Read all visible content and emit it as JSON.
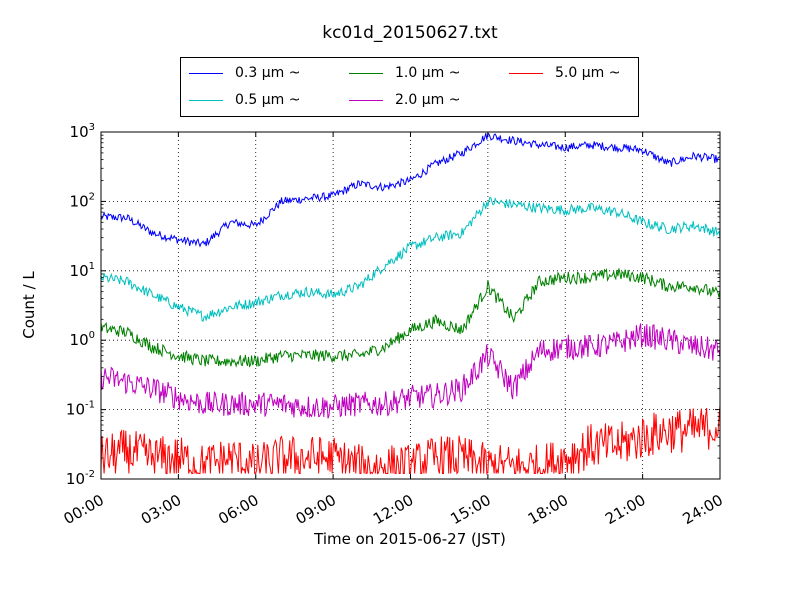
{
  "chart_data": {
    "type": "line",
    "title": "kc01d_20150627.txt",
    "xlabel": "Time on 2015-06-27 (JST)",
    "ylabel": "Count / L",
    "xlim": [
      "00:00",
      "24:00"
    ],
    "x_tick_labels": [
      "00:00",
      "03:00",
      "06:00",
      "09:00",
      "12:00",
      "15:00",
      "18:00",
      "21:00",
      "24:00"
    ],
    "y_scale": "log",
    "ylim": [
      0.01,
      1000
    ],
    "y_tick_labels": [
      {
        "base": "10",
        "exp": "-2"
      },
      {
        "base": "10",
        "exp": "-1"
      },
      {
        "base": "10",
        "exp": "0"
      },
      {
        "base": "10",
        "exp": "1"
      },
      {
        "base": "10",
        "exp": "2"
      },
      {
        "base": "10",
        "exp": "3"
      }
    ],
    "grid": true,
    "legend_position": "top-center, above plot",
    "x_hours": [
      0,
      1,
      2,
      3,
      4,
      5,
      6,
      7,
      8,
      9,
      10,
      11,
      12,
      13,
      14,
      15,
      16,
      17,
      18,
      19,
      20,
      21,
      22,
      23,
      24
    ],
    "series": [
      {
        "name": "0.3 μm ~",
        "color": "#0000ff",
        "values": [
          60,
          58,
          35,
          28,
          24,
          50,
          45,
          100,
          110,
          120,
          180,
          160,
          200,
          350,
          500,
          900,
          750,
          650,
          600,
          650,
          600,
          550,
          350,
          450,
          400
        ]
      },
      {
        "name": "0.5 μm ~",
        "color": "#00bfbf",
        "values": [
          8,
          7,
          4.5,
          3,
          2.2,
          3,
          3.5,
          4.5,
          5,
          4.5,
          6,
          12,
          22,
          30,
          35,
          100,
          90,
          80,
          75,
          80,
          70,
          50,
          40,
          45,
          35
        ]
      },
      {
        "name": "1.0 μm ~",
        "color": "#008000",
        "values": [
          1.5,
          1.3,
          0.8,
          0.6,
          0.5,
          0.5,
          0.5,
          0.6,
          0.6,
          0.6,
          0.6,
          0.8,
          1.4,
          1.9,
          1.4,
          6,
          2,
          7,
          8,
          8,
          9,
          8,
          6,
          6,
          4.5
        ]
      },
      {
        "name": "2.0 μm ~",
        "color": "#bf00bf",
        "values": [
          0.3,
          0.25,
          0.2,
          0.15,
          0.12,
          0.12,
          0.12,
          0.12,
          0.11,
          0.11,
          0.12,
          0.12,
          0.15,
          0.16,
          0.2,
          0.6,
          0.2,
          0.7,
          0.8,
          0.8,
          0.9,
          1.2,
          1,
          0.8,
          0.7
        ]
      },
      {
        "name": "5.0 μm ~",
        "color": "#ff0000",
        "values": [
          0.02,
          0.025,
          0.02,
          0.02,
          0.015,
          0.02,
          0.015,
          0.02,
          0.02,
          0.02,
          0.015,
          0.015,
          0.015,
          0.02,
          0.02,
          0.015,
          0.015,
          0.015,
          0.02,
          0.03,
          0.03,
          0.04,
          0.05,
          0.05,
          0.06
        ]
      }
    ]
  }
}
